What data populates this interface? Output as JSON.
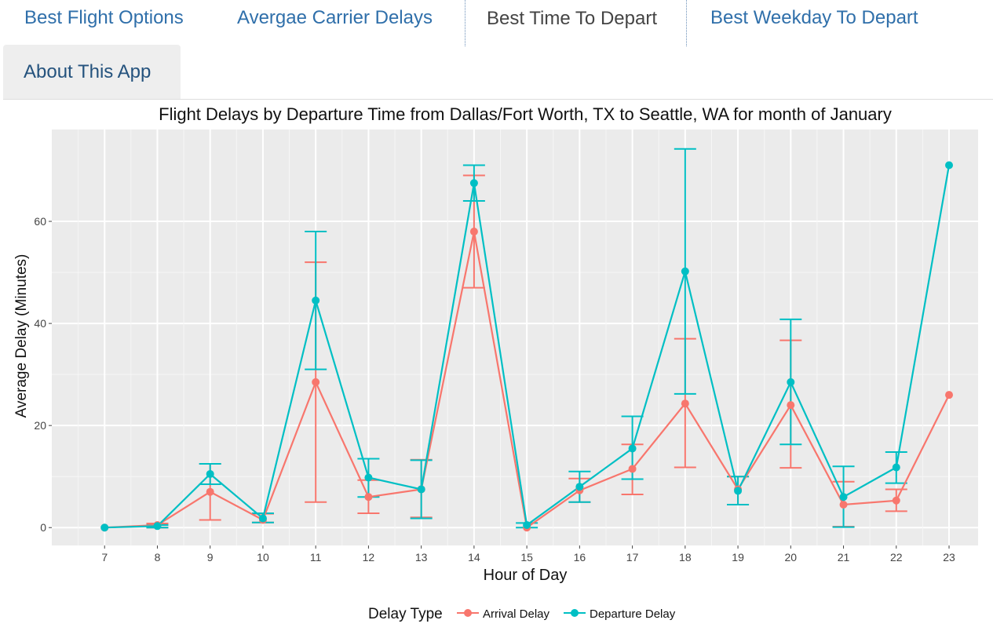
{
  "tabs": [
    {
      "label": "Best Flight Options",
      "active": false
    },
    {
      "label": "Avergae Carrier Delays",
      "active": false
    },
    {
      "label": "Best Time To Depart",
      "active": true
    },
    {
      "label": "Best Weekday To Depart",
      "active": false
    },
    {
      "label": "About This App",
      "active": false
    }
  ],
  "colors": {
    "link": "#2f6faa",
    "arrival": "#f8766d",
    "departure": "#00bfc4",
    "panel": "#ebebeb"
  },
  "chart_data": {
    "type": "line",
    "title": "Flight Delays by Departure Time from  Dallas/Fort Worth, TX  to  Seattle, WA for month of  January",
    "xlabel": "Hour of Day",
    "ylabel": "Average Delay (Minutes)",
    "x": [
      7,
      8,
      9,
      10,
      11,
      12,
      13,
      14,
      15,
      16,
      17,
      18,
      19,
      20,
      21,
      22,
      23
    ],
    "ylim": [
      -3.5,
      78
    ],
    "yticks": [
      0,
      20,
      40,
      60
    ],
    "grid": true,
    "legend_title": "Delay Type",
    "legend_position": "bottom",
    "series": [
      {
        "name": "Arrival Delay",
        "color": "#f8766d",
        "values": [
          0,
          0.5,
          7,
          1.5,
          28.5,
          6,
          7.5,
          58,
          0,
          7.3,
          11.5,
          24.3,
          7.5,
          24,
          4.5,
          5.3,
          26
        ],
        "err_low": [
          null,
          0,
          1.5,
          1,
          5,
          2.8,
          2,
          47,
          null,
          5,
          6.5,
          11.8,
          4.5,
          11.7,
          0.2,
          3.2,
          null
        ],
        "err_high": [
          null,
          0.8,
          12.5,
          2.7,
          52,
          9.3,
          13.3,
          69,
          null,
          9.6,
          16.3,
          37,
          10,
          36.7,
          9,
          7.5,
          null
        ]
      },
      {
        "name": "Departure Delay",
        "color": "#00bfc4",
        "values": [
          0,
          0.3,
          10.5,
          1.8,
          44.5,
          9.8,
          7.5,
          67.5,
          0.5,
          8,
          15.5,
          50.2,
          7.2,
          28.5,
          6,
          11.8,
          71
        ],
        "err_low": [
          null,
          0,
          8.5,
          1,
          31,
          6,
          1.8,
          64,
          0,
          5,
          9.5,
          26.2,
          4.5,
          16.3,
          0.1,
          8.7,
          null
        ],
        "err_high": [
          null,
          0.5,
          12.5,
          2.8,
          58,
          13.5,
          13.2,
          71,
          0.9,
          11,
          21.8,
          74.2,
          10,
          40.8,
          12,
          14.8,
          null
        ]
      }
    ]
  }
}
